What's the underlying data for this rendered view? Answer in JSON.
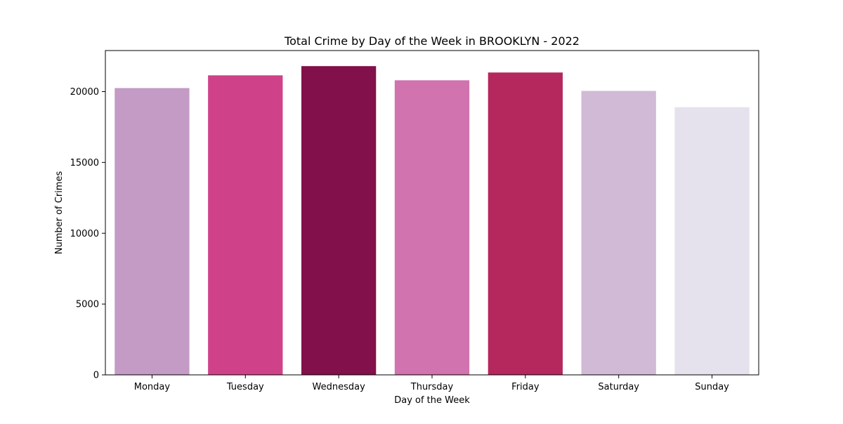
{
  "chart_data": {
    "type": "bar",
    "title": "Total Crime by Day of the Week in BROOKLYN - 2022",
    "xlabel": "Day of the Week",
    "ylabel": "Number of Crimes",
    "categories": [
      "Monday",
      "Tuesday",
      "Wednesday",
      "Thursday",
      "Friday",
      "Saturday",
      "Sunday"
    ],
    "values": [
      20250,
      21150,
      21800,
      20800,
      21350,
      20050,
      18900
    ],
    "colors": [
      "#c39bc5",
      "#cf4289",
      "#82104a",
      "#d073ae",
      "#b4285d",
      "#d1bad6",
      "#e5e2ed"
    ],
    "ylim": [
      0,
      22900
    ],
    "yticks": [
      0,
      5000,
      10000,
      15000,
      20000
    ],
    "grid": false,
    "legend": "none"
  }
}
